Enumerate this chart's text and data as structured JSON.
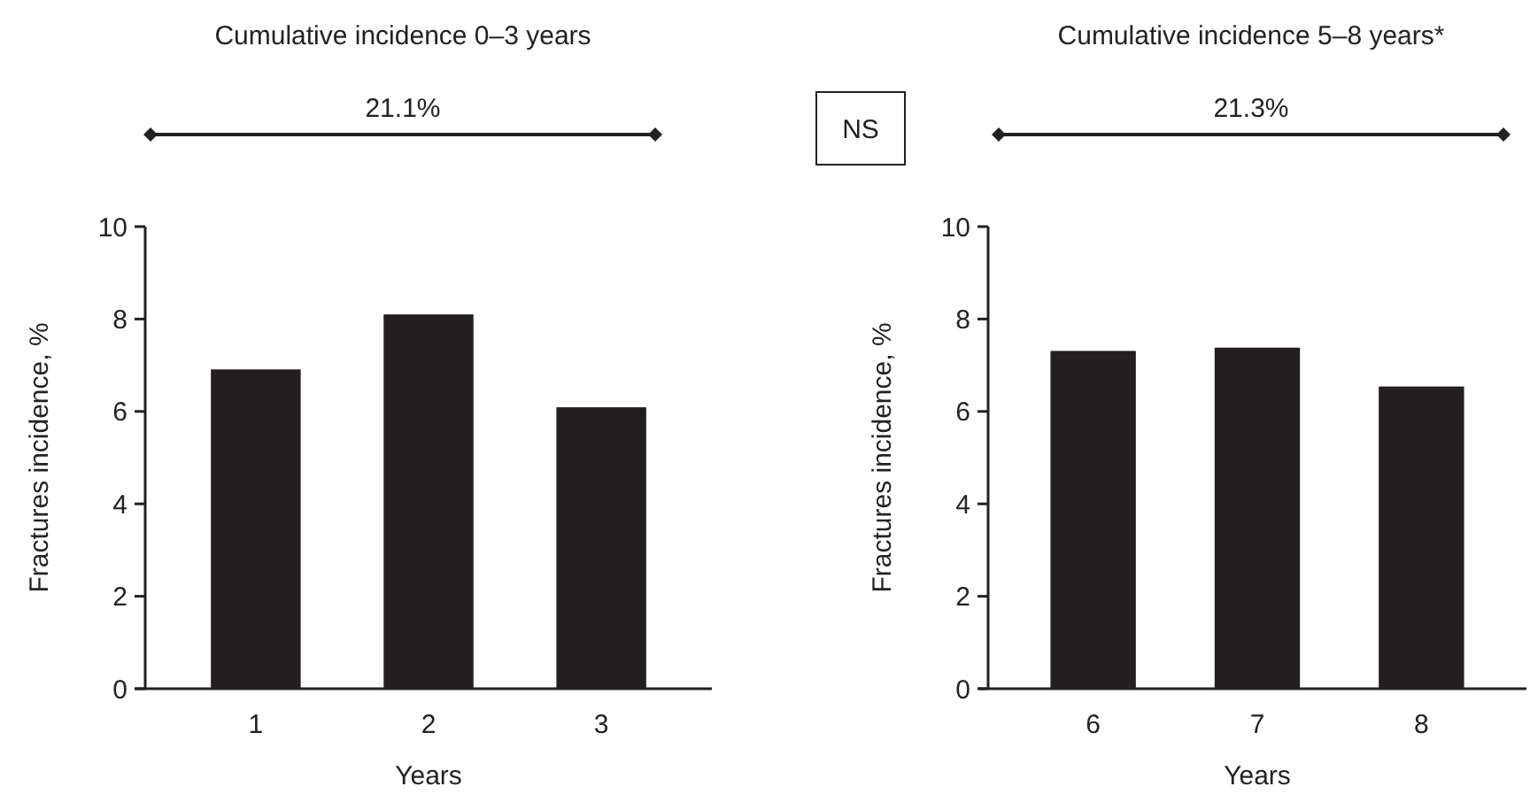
{
  "chart_data": [
    {
      "type": "bar",
      "title": "Cumulative incidence 0–3 years",
      "xlabel": "Years",
      "ylabel": "Fractures incidence, %",
      "categories": [
        "1",
        "2",
        "3"
      ],
      "values": [
        6.91,
        8.1,
        6.09
      ],
      "color": "#231f20",
      "ylim": [
        0,
        10
      ],
      "yticks": [
        0,
        2,
        4,
        6,
        8,
        10
      ],
      "annotations": [
        "21.1%",
        "NS"
      ]
    },
    {
      "type": "bar",
      "title": "Cumulative incidence 5–8 years*",
      "xlabel": "Years",
      "ylabel": "Fractures incidence, %",
      "categories": [
        "6",
        "7",
        "8"
      ],
      "values": [
        7.31,
        7.38,
        6.54
      ],
      "color": "#231f20",
      "ylim": [
        0,
        10
      ],
      "yticks": [
        0,
        2,
        4,
        6,
        8,
        10
      ],
      "annotations": [
        "21.3%"
      ]
    }
  ]
}
